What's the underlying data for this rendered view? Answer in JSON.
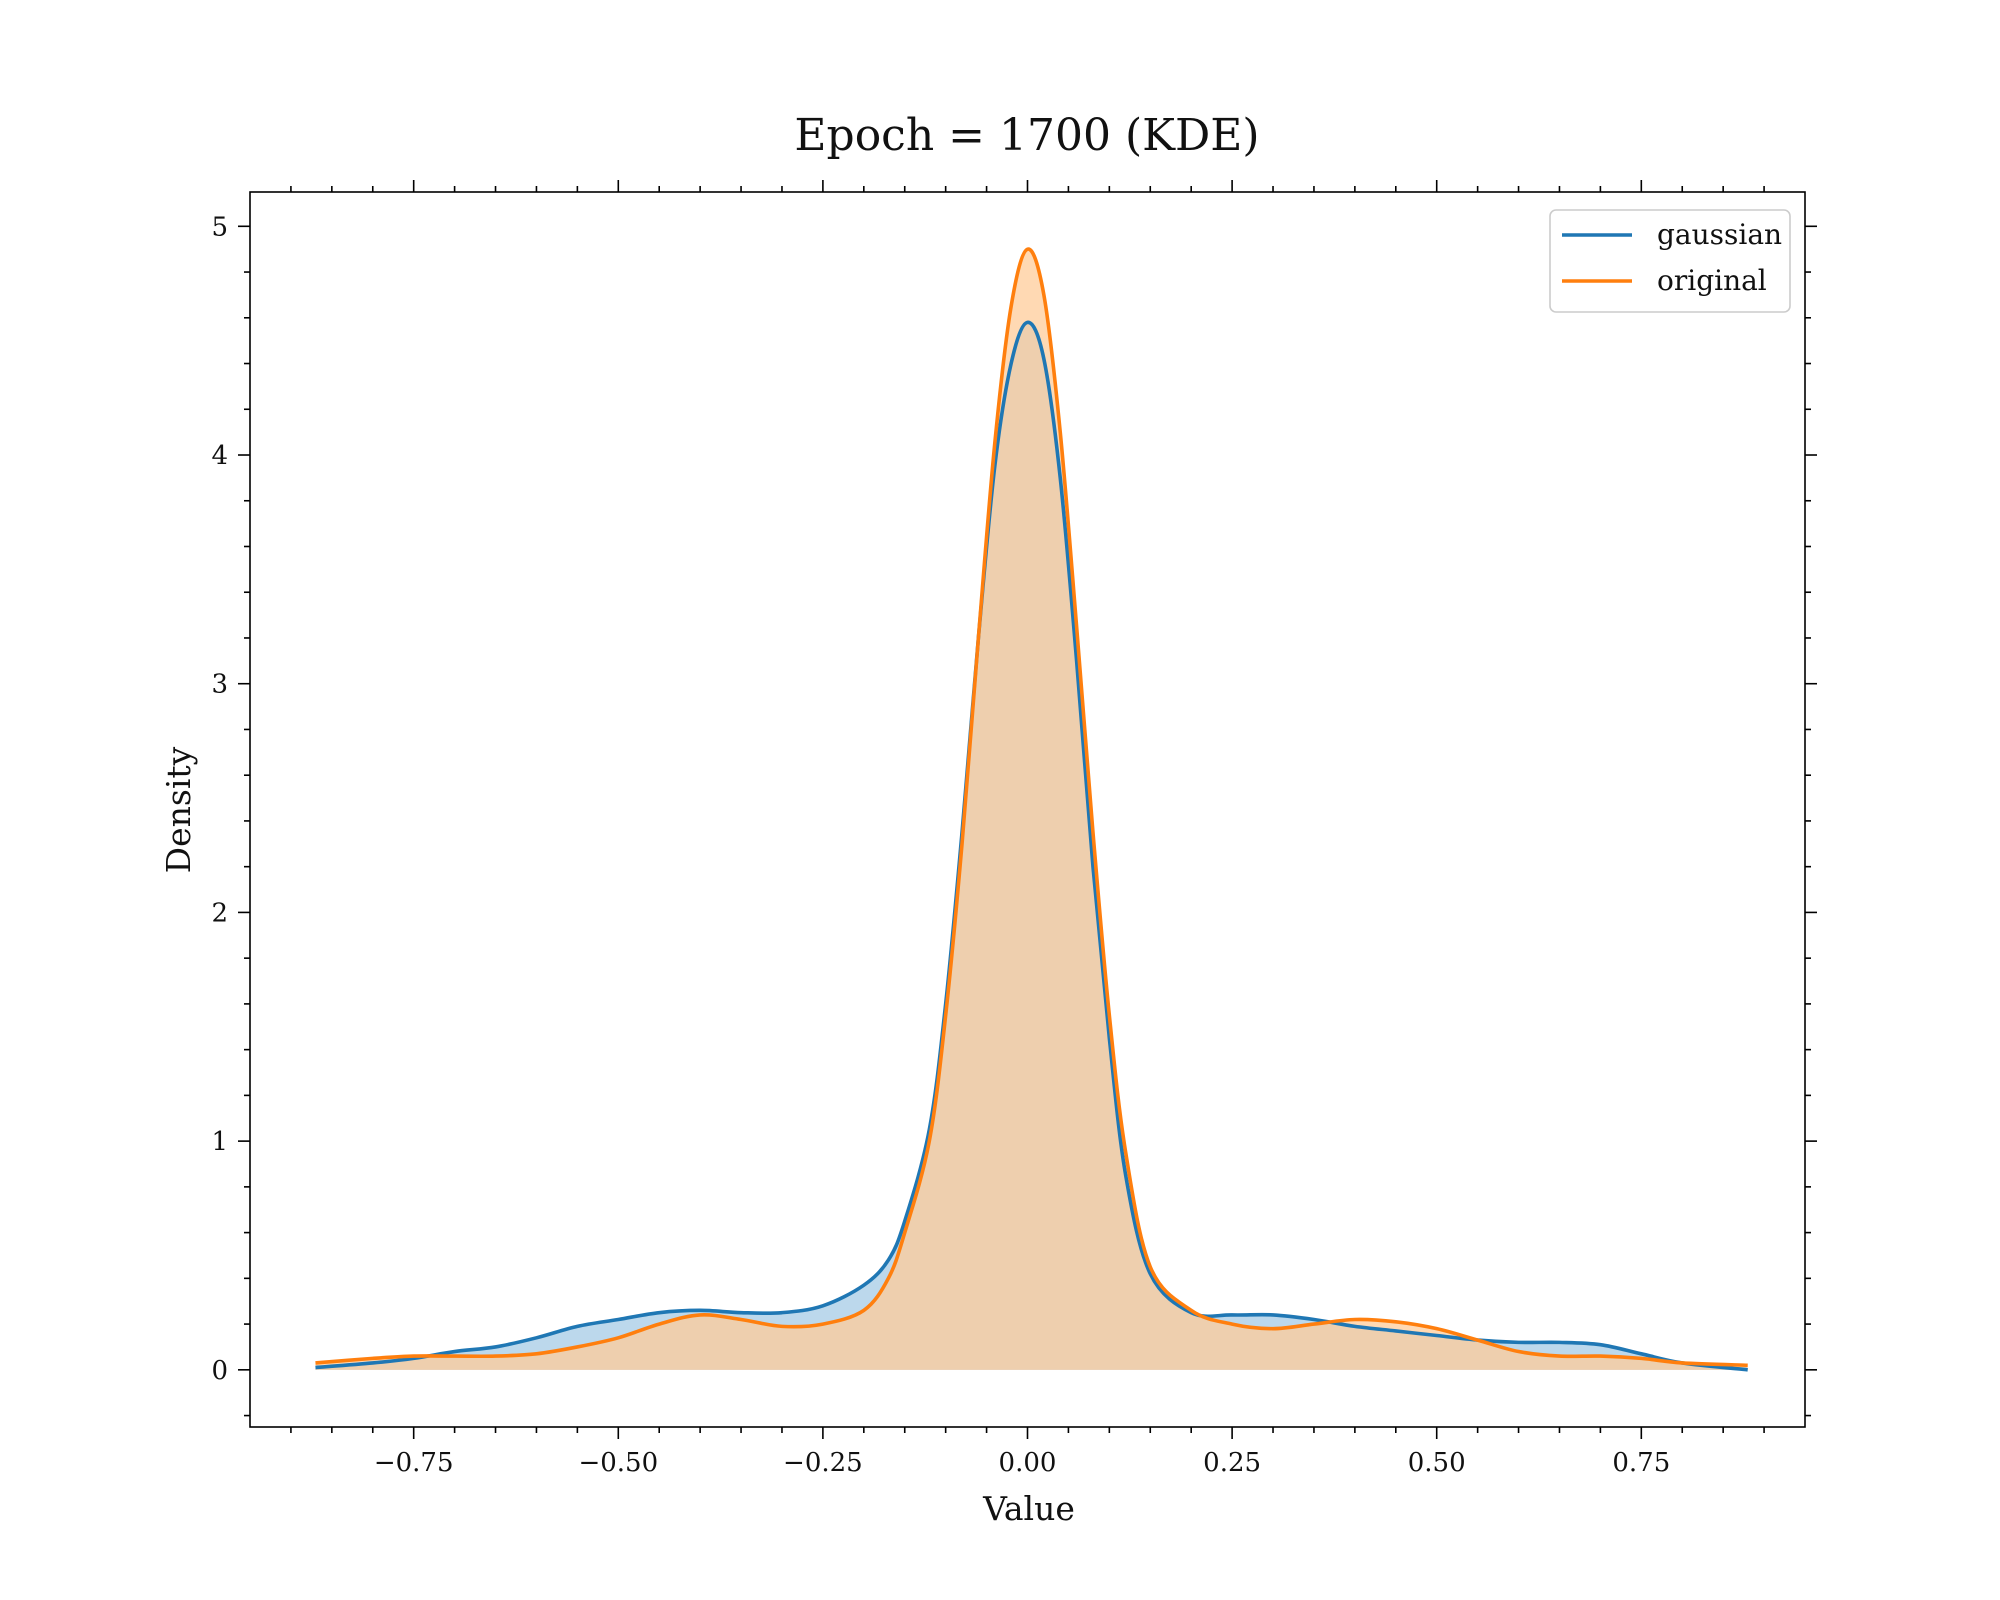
{
  "chart_data": {
    "type": "area",
    "title": "Epoch = 1700 (KDE)",
    "xlabel": "Value",
    "ylabel": "Density",
    "xlim": [
      -0.95,
      0.95
    ],
    "ylim": [
      -0.25,
      5.15
    ],
    "xticks": [
      -0.75,
      -0.5,
      -0.25,
      0.0,
      0.25,
      0.5,
      0.75
    ],
    "xtick_labels": [
      "−0.75",
      "−0.50",
      "−0.25",
      "0.00",
      "0.25",
      "0.50",
      "0.75"
    ],
    "yticks": [
      0,
      1,
      2,
      3,
      4,
      5
    ],
    "ytick_labels": [
      "0",
      "1",
      "2",
      "3",
      "4",
      "5"
    ],
    "grid": false,
    "legend_position": "top-right",
    "series": [
      {
        "name": "gaussian",
        "color": "#1f77b4",
        "fill": "#a6cbe5",
        "x": [
          -0.87,
          -0.8,
          -0.75,
          -0.7,
          -0.65,
          -0.6,
          -0.55,
          -0.5,
          -0.45,
          -0.4,
          -0.35,
          -0.3,
          -0.25,
          -0.2,
          -0.17,
          -0.15,
          -0.12,
          -0.1,
          -0.08,
          -0.06,
          -0.04,
          -0.02,
          0.0,
          0.02,
          0.04,
          0.06,
          0.08,
          0.1,
          0.12,
          0.15,
          0.2,
          0.25,
          0.3,
          0.35,
          0.4,
          0.45,
          0.5,
          0.55,
          0.6,
          0.65,
          0.7,
          0.75,
          0.8,
          0.88
        ],
        "y": [
          0.01,
          0.03,
          0.05,
          0.08,
          0.1,
          0.14,
          0.19,
          0.22,
          0.25,
          0.26,
          0.25,
          0.25,
          0.28,
          0.37,
          0.48,
          0.65,
          1.05,
          1.6,
          2.35,
          3.2,
          3.95,
          4.4,
          4.58,
          4.42,
          3.9,
          3.1,
          2.2,
          1.45,
          0.85,
          0.42,
          0.25,
          0.24,
          0.24,
          0.22,
          0.19,
          0.17,
          0.15,
          0.13,
          0.12,
          0.12,
          0.11,
          0.07,
          0.03,
          0.0
        ]
      },
      {
        "name": "original",
        "color": "#ff7f0e",
        "fill": "#ffcc99",
        "x": [
          -0.87,
          -0.8,
          -0.75,
          -0.7,
          -0.65,
          -0.6,
          -0.55,
          -0.5,
          -0.45,
          -0.4,
          -0.35,
          -0.3,
          -0.25,
          -0.2,
          -0.17,
          -0.15,
          -0.12,
          -0.1,
          -0.08,
          -0.06,
          -0.04,
          -0.02,
          0.0,
          0.02,
          0.04,
          0.06,
          0.08,
          0.1,
          0.12,
          0.15,
          0.2,
          0.25,
          0.3,
          0.35,
          0.4,
          0.45,
          0.5,
          0.55,
          0.6,
          0.65,
          0.7,
          0.75,
          0.8,
          0.88
        ],
        "y": [
          0.03,
          0.05,
          0.06,
          0.06,
          0.06,
          0.07,
          0.1,
          0.14,
          0.2,
          0.24,
          0.22,
          0.19,
          0.2,
          0.26,
          0.4,
          0.6,
          1.0,
          1.55,
          2.3,
          3.2,
          4.05,
          4.65,
          4.9,
          4.7,
          4.1,
          3.25,
          2.35,
          1.55,
          0.95,
          0.45,
          0.26,
          0.2,
          0.18,
          0.2,
          0.22,
          0.21,
          0.18,
          0.13,
          0.08,
          0.06,
          0.06,
          0.05,
          0.03,
          0.02
        ]
      }
    ]
  }
}
